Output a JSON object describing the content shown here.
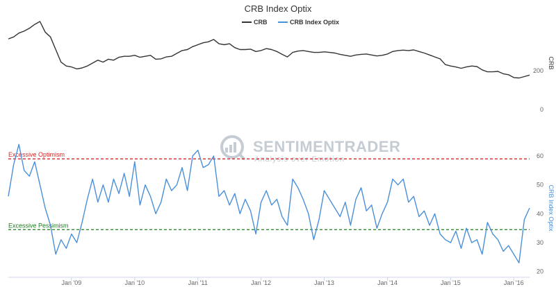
{
  "chart_data": {
    "type": "line",
    "title": "CRB Index Optix",
    "legend": [
      {
        "name": "CRB",
        "color": "#333333"
      },
      {
        "name": "CRB Index Optix",
        "color": "#4a8fd9"
      }
    ],
    "x_ticks": [
      "Jan '09",
      "Jan '10",
      "Jan '11",
      "Jan '12",
      "Jan '13",
      "Jan '14",
      "Jan '15",
      "Jan '16"
    ],
    "x_range": [
      "2008-01",
      "2016-04"
    ],
    "panels": [
      {
        "name": "CRB",
        "axis_title": "CRB",
        "y_ticks": [
          0,
          200
        ],
        "ylim": [
          0,
          480
        ],
        "color": "#333333",
        "points": [
          [
            "2008-01",
            365
          ],
          [
            "2008-02",
            375
          ],
          [
            "2008-03",
            395
          ],
          [
            "2008-04",
            405
          ],
          [
            "2008-05",
            420
          ],
          [
            "2008-06",
            440
          ],
          [
            "2008-07",
            455
          ],
          [
            "2008-08",
            400
          ],
          [
            "2008-09",
            375
          ],
          [
            "2008-10",
            310
          ],
          [
            "2008-11",
            245
          ],
          [
            "2008-12",
            225
          ],
          [
            "2009-01",
            220
          ],
          [
            "2009-02",
            210
          ],
          [
            "2009-03",
            215
          ],
          [
            "2009-04",
            225
          ],
          [
            "2009-05",
            240
          ],
          [
            "2009-06",
            255
          ],
          [
            "2009-07",
            245
          ],
          [
            "2009-08",
            260
          ],
          [
            "2009-09",
            255
          ],
          [
            "2009-10",
            270
          ],
          [
            "2009-11",
            275
          ],
          [
            "2009-12",
            275
          ],
          [
            "2010-01",
            280
          ],
          [
            "2010-02",
            270
          ],
          [
            "2010-03",
            275
          ],
          [
            "2010-04",
            280
          ],
          [
            "2010-05",
            260
          ],
          [
            "2010-06",
            262
          ],
          [
            "2010-07",
            272
          ],
          [
            "2010-08",
            275
          ],
          [
            "2010-09",
            290
          ],
          [
            "2010-10",
            305
          ],
          [
            "2010-11",
            310
          ],
          [
            "2010-12",
            325
          ],
          [
            "2011-01",
            335
          ],
          [
            "2011-02",
            345
          ],
          [
            "2011-03",
            350
          ],
          [
            "2011-04",
            362
          ],
          [
            "2011-05",
            340
          ],
          [
            "2011-06",
            335
          ],
          [
            "2011-07",
            340
          ],
          [
            "2011-08",
            320
          ],
          [
            "2011-09",
            310
          ],
          [
            "2011-10",
            310
          ],
          [
            "2011-11",
            312
          ],
          [
            "2011-12",
            300
          ],
          [
            "2012-01",
            305
          ],
          [
            "2012-02",
            315
          ],
          [
            "2012-03",
            310
          ],
          [
            "2012-04",
            300
          ],
          [
            "2012-05",
            285
          ],
          [
            "2012-06",
            272
          ],
          [
            "2012-07",
            295
          ],
          [
            "2012-08",
            302
          ],
          [
            "2012-09",
            305
          ],
          [
            "2012-10",
            300
          ],
          [
            "2012-11",
            295
          ],
          [
            "2012-12",
            295
          ],
          [
            "2013-01",
            298
          ],
          [
            "2013-02",
            295
          ],
          [
            "2013-03",
            292
          ],
          [
            "2013-04",
            285
          ],
          [
            "2013-05",
            280
          ],
          [
            "2013-06",
            275
          ],
          [
            "2013-07",
            282
          ],
          [
            "2013-08",
            285
          ],
          [
            "2013-09",
            287
          ],
          [
            "2013-10",
            282
          ],
          [
            "2013-11",
            277
          ],
          [
            "2013-12",
            280
          ],
          [
            "2014-01",
            287
          ],
          [
            "2014-02",
            300
          ],
          [
            "2014-03",
            305
          ],
          [
            "2014-04",
            307
          ],
          [
            "2014-05",
            305
          ],
          [
            "2014-06",
            308
          ],
          [
            "2014-07",
            300
          ],
          [
            "2014-08",
            292
          ],
          [
            "2014-09",
            282
          ],
          [
            "2014-10",
            272
          ],
          [
            "2014-11",
            262
          ],
          [
            "2014-12",
            232
          ],
          [
            "2015-01",
            225
          ],
          [
            "2015-02",
            220
          ],
          [
            "2015-03",
            213
          ],
          [
            "2015-04",
            220
          ],
          [
            "2015-05",
            225
          ],
          [
            "2015-06",
            222
          ],
          [
            "2015-07",
            205
          ],
          [
            "2015-08",
            195
          ],
          [
            "2015-09",
            195
          ],
          [
            "2015-10",
            197
          ],
          [
            "2015-11",
            185
          ],
          [
            "2015-12",
            180
          ],
          [
            "2016-01",
            165
          ],
          [
            "2016-02",
            163
          ],
          [
            "2016-03",
            170
          ],
          [
            "2016-04",
            178
          ]
        ]
      },
      {
        "name": "CRB Index Optix",
        "axis_title": "CRB Index Optix",
        "y_ticks": [
          20,
          30,
          40,
          50,
          60
        ],
        "ylim": [
          18,
          66
        ],
        "color": "#4a8fd9",
        "points": [
          [
            "2008-01",
            46
          ],
          [
            "2008-02",
            57
          ],
          [
            "2008-03",
            64
          ],
          [
            "2008-04",
            55
          ],
          [
            "2008-05",
            53
          ],
          [
            "2008-06",
            58
          ],
          [
            "2008-07",
            50
          ],
          [
            "2008-08",
            42
          ],
          [
            "2008-09",
            36
          ],
          [
            "2008-10",
            26
          ],
          [
            "2008-11",
            31
          ],
          [
            "2008-12",
            28
          ],
          [
            "2009-01",
            33
          ],
          [
            "2009-02",
            30
          ],
          [
            "2009-03",
            37
          ],
          [
            "2009-04",
            45
          ],
          [
            "2009-05",
            52
          ],
          [
            "2009-06",
            44
          ],
          [
            "2009-07",
            50
          ],
          [
            "2009-08",
            44
          ],
          [
            "2009-09",
            52
          ],
          [
            "2009-10",
            47
          ],
          [
            "2009-11",
            54
          ],
          [
            "2009-12",
            46
          ],
          [
            "2010-01",
            58
          ],
          [
            "2010-02",
            43
          ],
          [
            "2010-03",
            50
          ],
          [
            "2010-04",
            46
          ],
          [
            "2010-05",
            40
          ],
          [
            "2010-06",
            44
          ],
          [
            "2010-07",
            52
          ],
          [
            "2010-08",
            48
          ],
          [
            "2010-09",
            50
          ],
          [
            "2010-10",
            56
          ],
          [
            "2010-11",
            48
          ],
          [
            "2010-12",
            60
          ],
          [
            "2011-01",
            62
          ],
          [
            "2011-02",
            56
          ],
          [
            "2011-03",
            57
          ],
          [
            "2011-04",
            60
          ],
          [
            "2011-05",
            46
          ],
          [
            "2011-06",
            48
          ],
          [
            "2011-07",
            43
          ],
          [
            "2011-08",
            47
          ],
          [
            "2011-09",
            40
          ],
          [
            "2011-10",
            45
          ],
          [
            "2011-11",
            41
          ],
          [
            "2011-12",
            33
          ],
          [
            "2012-01",
            44
          ],
          [
            "2012-02",
            48
          ],
          [
            "2012-03",
            43
          ],
          [
            "2012-04",
            45
          ],
          [
            "2012-05",
            39
          ],
          [
            "2012-06",
            36
          ],
          [
            "2012-07",
            52
          ],
          [
            "2012-08",
            49
          ],
          [
            "2012-09",
            45
          ],
          [
            "2012-10",
            40
          ],
          [
            "2012-11",
            31
          ],
          [
            "2012-12",
            38
          ],
          [
            "2013-01",
            48
          ],
          [
            "2013-02",
            45
          ],
          [
            "2013-03",
            42
          ],
          [
            "2013-04",
            39
          ],
          [
            "2013-05",
            44
          ],
          [
            "2013-06",
            36
          ],
          [
            "2013-07",
            45
          ],
          [
            "2013-08",
            49
          ],
          [
            "2013-09",
            41
          ],
          [
            "2013-10",
            43
          ],
          [
            "2013-11",
            35
          ],
          [
            "2013-12",
            40
          ],
          [
            "2014-01",
            44
          ],
          [
            "2014-02",
            52
          ],
          [
            "2014-03",
            50
          ],
          [
            "2014-04",
            52
          ],
          [
            "2014-05",
            44
          ],
          [
            "2014-06",
            46
          ],
          [
            "2014-07",
            39
          ],
          [
            "2014-08",
            41
          ],
          [
            "2014-09",
            36
          ],
          [
            "2014-10",
            40
          ],
          [
            "2014-11",
            33
          ],
          [
            "2014-12",
            31
          ],
          [
            "2015-01",
            30
          ],
          [
            "2015-02",
            34
          ],
          [
            "2015-03",
            28
          ],
          [
            "2015-04",
            35
          ],
          [
            "2015-05",
            30
          ],
          [
            "2015-06",
            31
          ],
          [
            "2015-07",
            26
          ],
          [
            "2015-08",
            37
          ],
          [
            "2015-09",
            33
          ],
          [
            "2015-10",
            31
          ],
          [
            "2015-11",
            27
          ],
          [
            "2015-12",
            29
          ],
          [
            "2016-01",
            26
          ],
          [
            "2016-02",
            23
          ],
          [
            "2016-03",
            38
          ],
          [
            "2016-04",
            42
          ]
        ]
      }
    ],
    "bands": [
      {
        "label": "Excessive Optimism",
        "value": 59,
        "color": "#d62728"
      },
      {
        "label": "Excessive Pessimism",
        "value": 34.5,
        "color": "#1a7d1a"
      }
    ],
    "watermark": {
      "brand": "SENTIMENTRADER",
      "tagline": "Analysis over Emotion"
    },
    "grid": false
  }
}
